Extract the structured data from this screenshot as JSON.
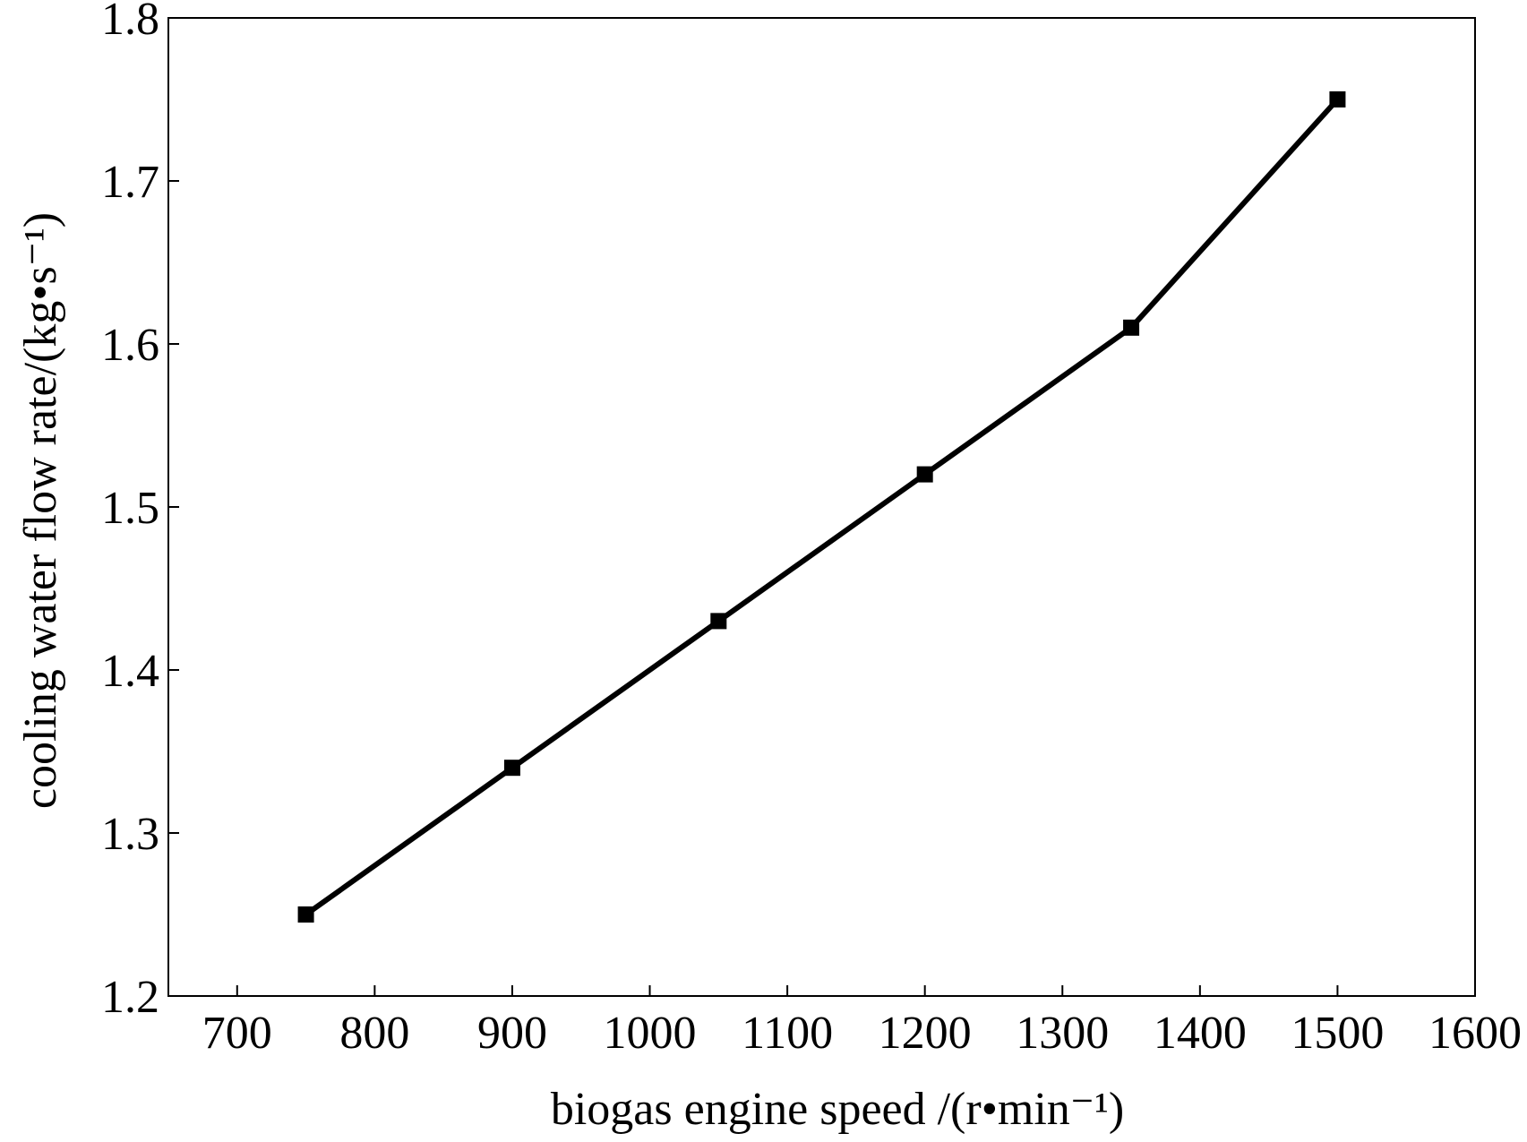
{
  "chart_data": {
    "type": "line",
    "x_label": "biogas engine speed /(r•min⁻¹)",
    "y_label": "cooling water flow rate/(kg•s⁻¹)",
    "x": [
      750,
      900,
      1050,
      1200,
      1350,
      1500
    ],
    "series": [
      {
        "color": "#000000",
        "values": [
          1.25,
          1.34,
          1.43,
          1.52,
          1.61,
          1.75
        ]
      }
    ],
    "xlim": [
      650,
      1600
    ],
    "xticks": [
      700,
      800,
      900,
      1000,
      1100,
      1200,
      1300,
      1400,
      1500,
      1600
    ],
    "ylim": [
      1.2,
      1.8
    ],
    "yticks": [
      {
        "value": 1.2,
        "label": "1.2"
      },
      {
        "value": 1.3,
        "label": "1.3"
      },
      {
        "value": 1.4,
        "label": "1.4"
      },
      {
        "value": 1.5,
        "label": "1.5"
      },
      {
        "value": 1.6,
        "label": "1.6"
      },
      {
        "value": 1.7,
        "label": "1.7"
      },
      {
        "value": 1.8,
        "label": "1.8"
      }
    ],
    "grid": false
  }
}
